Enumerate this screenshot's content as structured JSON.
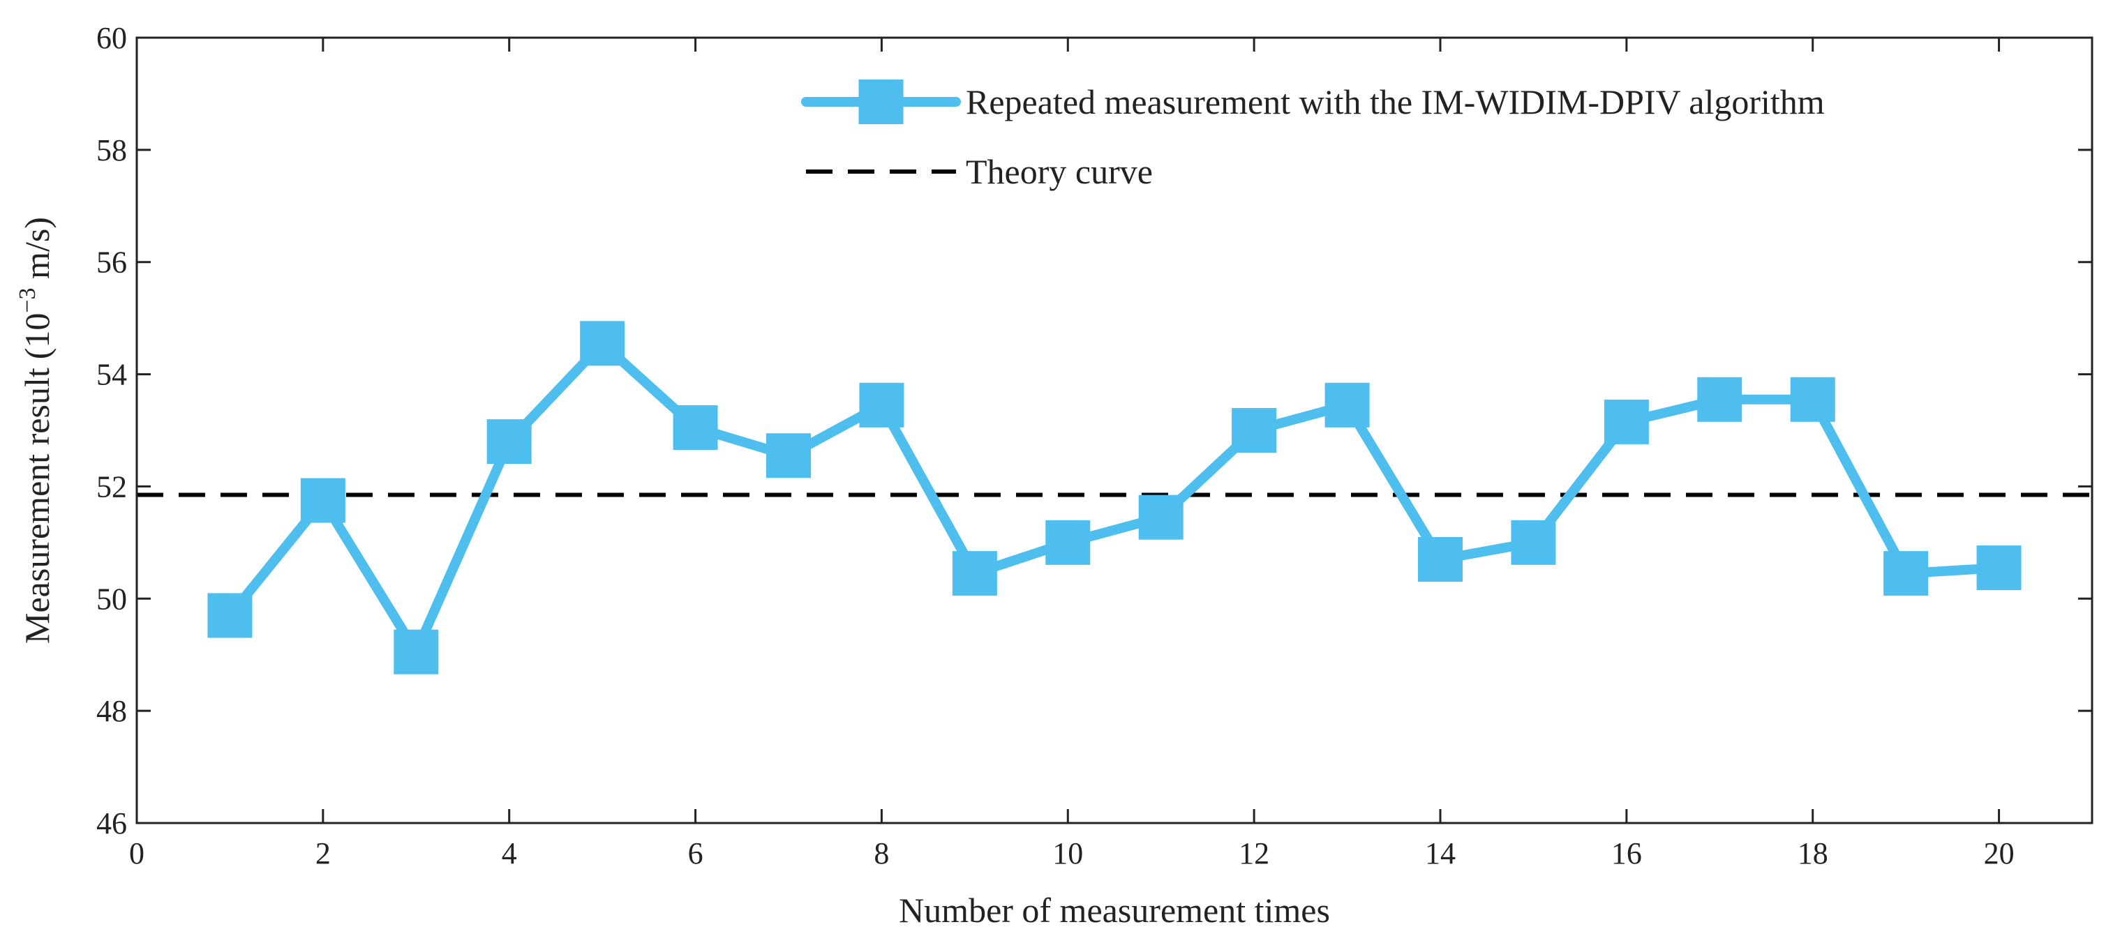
{
  "chart_data": {
    "type": "line",
    "title": "",
    "xlabel": "Number of measurement times",
    "ylabel": "Measurement result",
    "ylabel_unit_prefix": "(10",
    "ylabel_unit_exp": "−3",
    "ylabel_unit_suffix": " m/s)",
    "xlim": [
      0,
      21
    ],
    "ylim": [
      46,
      60
    ],
    "x_ticks": [
      "0",
      "2",
      "4",
      "6",
      "8",
      "10",
      "12",
      "14",
      "16",
      "18",
      "20"
    ],
    "y_ticks": [
      "46",
      "48",
      "50",
      "52",
      "54",
      "56",
      "58",
      "60"
    ],
    "grid": false,
    "legend_position": "top-right",
    "series": [
      {
        "name": "Repeated measurement with the IM-WIDIM-DPIV algorithm",
        "color": "#4DBEEE",
        "marker": "square",
        "x": [
          1,
          2,
          3,
          4,
          5,
          6,
          7,
          8,
          9,
          10,
          11,
          12,
          13,
          14,
          15,
          16,
          17,
          18,
          19,
          20
        ],
        "values": [
          49.7,
          51.75,
          49.05,
          52.8,
          54.55,
          53.05,
          52.55,
          53.45,
          50.45,
          51.0,
          51.45,
          53.0,
          53.45,
          50.7,
          51.0,
          53.15,
          53.55,
          53.55,
          50.45,
          50.55
        ]
      },
      {
        "name": "Theory curve",
        "color": "#000000",
        "style": "dashed",
        "constant": 51.85
      }
    ]
  }
}
